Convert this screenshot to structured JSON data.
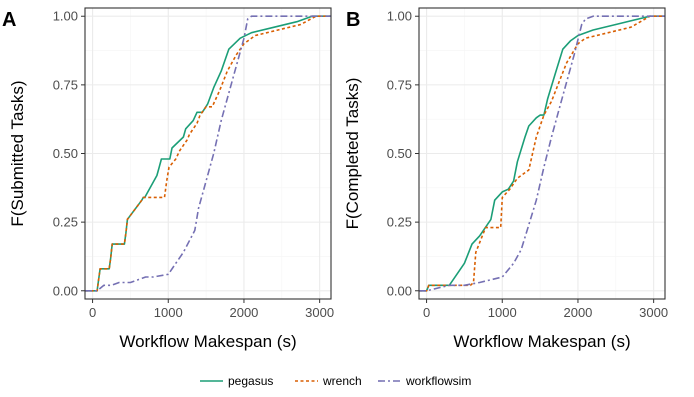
{
  "legend": [
    {
      "key": "pegasus",
      "label": "pegasus",
      "color": "#1b9e77",
      "dash": ""
    },
    {
      "key": "wrench",
      "label": "wrench",
      "color": "#d95f02",
      "dash": "3,2.5"
    },
    {
      "key": "workflowsim",
      "label": "workflowsim",
      "color": "#7570b3",
      "dash": "7,3,2,3"
    }
  ],
  "chart_data": [
    {
      "type": "line",
      "panel": "A",
      "xlabel": "Workflow Makespan (s)",
      "ylabel": "F(Submitted Tasks)",
      "xlim": [
        -100,
        3150
      ],
      "ylim": [
        -0.03,
        1.03
      ],
      "xticks": [
        0,
        1000,
        2000,
        3000
      ],
      "yticks": [
        0.0,
        0.25,
        0.5,
        0.75,
        1.0
      ],
      "ytick_labels": [
        "0.00",
        "0.25",
        "0.50",
        "0.75",
        "1.00"
      ],
      "grid": true,
      "legend_position": "bottom",
      "series": [
        {
          "name": "pegasus",
          "x": [
            -100,
            60,
            80,
            100,
            220,
            240,
            260,
            420,
            440,
            460,
            650,
            670,
            690,
            850,
            880,
            910,
            1020,
            1050,
            1200,
            1230,
            1330,
            1380,
            1450,
            1520,
            1600,
            1700,
            1800,
            1950,
            2100,
            2400,
            2700,
            2900,
            3150
          ],
          "y": [
            0.0,
            0.0,
            0.04,
            0.08,
            0.08,
            0.12,
            0.17,
            0.17,
            0.21,
            0.26,
            0.33,
            0.34,
            0.34,
            0.42,
            0.45,
            0.48,
            0.48,
            0.52,
            0.56,
            0.59,
            0.62,
            0.65,
            0.65,
            0.68,
            0.74,
            0.8,
            0.88,
            0.92,
            0.94,
            0.96,
            0.98,
            1.0,
            1.0
          ]
        },
        {
          "name": "wrench",
          "x": [
            -100,
            60,
            80,
            100,
            220,
            240,
            260,
            420,
            440,
            460,
            650,
            670,
            690,
            950,
            980,
            1010,
            1100,
            1150,
            1250,
            1280,
            1380,
            1420,
            1500,
            1580,
            1680,
            1780,
            1900,
            2000,
            2150,
            2450,
            2750,
            2950,
            3150
          ],
          "y": [
            0.0,
            0.0,
            0.04,
            0.08,
            0.08,
            0.12,
            0.17,
            0.17,
            0.21,
            0.26,
            0.33,
            0.34,
            0.34,
            0.34,
            0.4,
            0.45,
            0.48,
            0.51,
            0.55,
            0.57,
            0.61,
            0.64,
            0.67,
            0.67,
            0.73,
            0.8,
            0.86,
            0.9,
            0.93,
            0.95,
            0.97,
            1.0,
            1.0
          ]
        },
        {
          "name": "workflowsim",
          "x": [
            -100,
            60,
            150,
            250,
            350,
            500,
            700,
            800,
            1000,
            1100,
            1200,
            1350,
            1400,
            1500,
            1600,
            1700,
            1800,
            1900,
            2000,
            2050,
            2100,
            2200,
            2500,
            2800,
            3150
          ],
          "y": [
            0.0,
            0.0,
            0.02,
            0.02,
            0.03,
            0.03,
            0.05,
            0.05,
            0.06,
            0.1,
            0.14,
            0.22,
            0.3,
            0.4,
            0.5,
            0.62,
            0.72,
            0.82,
            0.92,
            0.99,
            1.0,
            1.0,
            1.0,
            1.0,
            1.0
          ]
        }
      ]
    },
    {
      "type": "line",
      "panel": "B",
      "xlabel": "Workflow Makespan (s)",
      "ylabel": "F(Completed Tasks)",
      "xlim": [
        -100,
        3150
      ],
      "ylim": [
        -0.03,
        1.03
      ],
      "xticks": [
        0,
        1000,
        2000,
        3000
      ],
      "yticks": [
        0.0,
        0.25,
        0.5,
        0.75,
        1.0
      ],
      "ytick_labels": [
        "0.00",
        "0.25",
        "0.50",
        "0.75",
        "1.00"
      ],
      "grid": true,
      "legend_position": "bottom",
      "series": [
        {
          "name": "pegasus",
          "x": [
            -100,
            0,
            30,
            300,
            350,
            500,
            600,
            700,
            850,
            900,
            1000,
            1080,
            1150,
            1200,
            1300,
            1350,
            1450,
            1500,
            1550,
            1600,
            1700,
            1800,
            1900,
            2000,
            2200,
            2500,
            2800,
            2950,
            3150
          ],
          "y": [
            0.0,
            0.0,
            0.02,
            0.02,
            0.04,
            0.1,
            0.17,
            0.2,
            0.26,
            0.33,
            0.36,
            0.37,
            0.4,
            0.47,
            0.56,
            0.6,
            0.63,
            0.64,
            0.64,
            0.7,
            0.79,
            0.88,
            0.91,
            0.93,
            0.95,
            0.97,
            0.99,
            1.0,
            1.0
          ]
        },
        {
          "name": "wrench",
          "x": [
            -100,
            0,
            30,
            580,
            620,
            650,
            780,
            800,
            980,
            1000,
            1100,
            1200,
            1350,
            1450,
            1550,
            1650,
            1750,
            1850,
            2000,
            2100,
            2400,
            2700,
            2950,
            3150
          ],
          "y": [
            0.0,
            0.0,
            0.02,
            0.02,
            0.03,
            0.14,
            0.23,
            0.23,
            0.23,
            0.34,
            0.37,
            0.41,
            0.44,
            0.56,
            0.64,
            0.69,
            0.76,
            0.83,
            0.9,
            0.92,
            0.94,
            0.96,
            1.0,
            1.0
          ]
        },
        {
          "name": "workflowsim",
          "x": [
            -100,
            0,
            300,
            500,
            700,
            1000,
            1150,
            1250,
            1350,
            1450,
            1550,
            1650,
            1750,
            1850,
            1950,
            2050,
            2100,
            2200,
            2500,
            2800,
            3150
          ],
          "y": [
            0.0,
            0.0,
            0.02,
            0.02,
            0.03,
            0.05,
            0.1,
            0.15,
            0.24,
            0.33,
            0.45,
            0.56,
            0.66,
            0.76,
            0.86,
            0.97,
            0.99,
            1.0,
            1.0,
            1.0,
            1.0
          ]
        }
      ]
    }
  ]
}
